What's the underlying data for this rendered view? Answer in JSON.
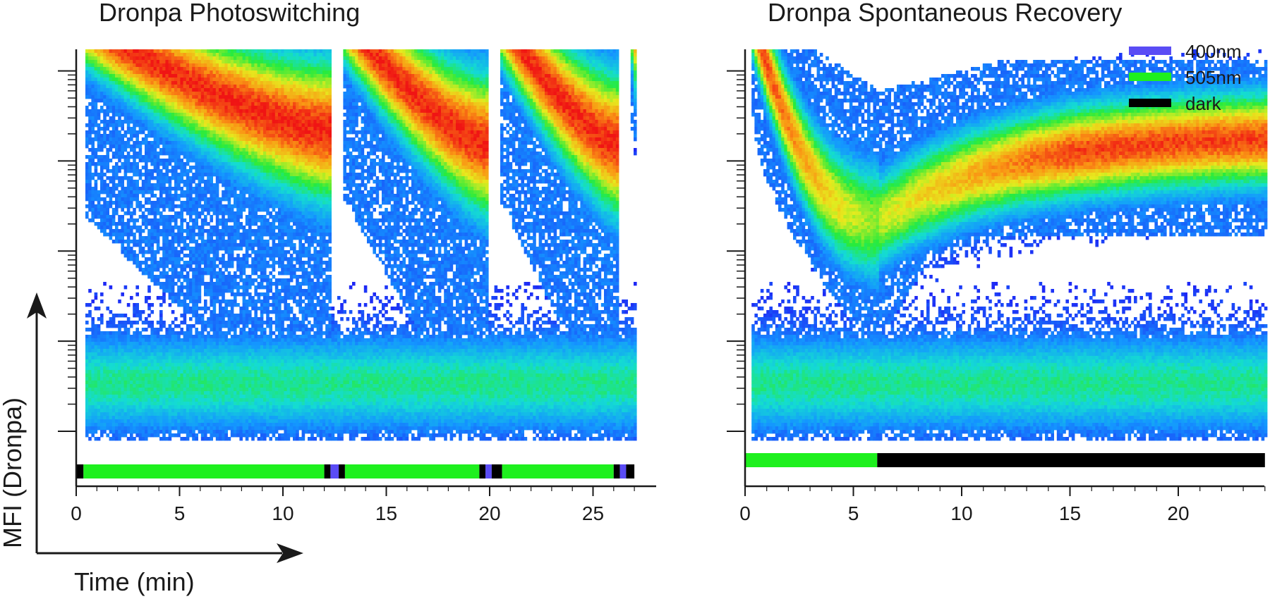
{
  "figure": {
    "y_axis_label": "MFI (Dronpa)",
    "x_axis_label": "Time (min)"
  },
  "colors": {
    "400nm": "#5a4cf5",
    "505nm": "#1ef01e",
    "dark": "#000000",
    "axis": "#1a1a1a"
  },
  "legend": [
    {
      "label": "400nm",
      "color_key": "400nm"
    },
    {
      "label": "505nm",
      "color_key": "505nm"
    },
    {
      "label": "dark",
      "color_key": "dark"
    }
  ],
  "chart_data": [
    {
      "type": "heatmap",
      "title": "Dronpa Photoswitching",
      "xlabel": "Time (min)",
      "ylabel": "MFI (Dronpa)",
      "xlim": [
        0,
        27.5
      ],
      "xticks": [
        0,
        5,
        10,
        15,
        20,
        25
      ],
      "xtick_labels": [
        "0",
        "5",
        "10",
        "15",
        "20",
        "25"
      ],
      "y_scale": "log",
      "y_decades": 4,
      "segments": [
        {
          "start": 0.3,
          "end": 12.2,
          "peak_start": 4.55,
          "peak_end": 3.35,
          "bright_top": 4.6,
          "bright_bottom": 2.4,
          "dim_bottom_end": 0.4
        },
        {
          "start": 12.9,
          "end": 19.9,
          "peak_start": 4.6,
          "peak_end": 3.2,
          "bright_top": 4.6,
          "bright_bottom": 2.6,
          "dim_bottom_end": 0.4
        },
        {
          "start": 20.4,
          "end": 26.2,
          "peak_start": 4.6,
          "peak_end": 3.2,
          "bright_top": 4.6,
          "bright_bottom": 2.6,
          "dim_bottom_end": 0.5
        },
        {
          "start": 26.8,
          "end": 27.0,
          "peak_start": 4.6,
          "peak_end": 4.6,
          "bright_top": 4.6,
          "bright_bottom": 3.4,
          "dim_bottom_end": 3.2
        }
      ],
      "background_band": {
        "center": 0.55,
        "width": 0.35
      },
      "illumination": [
        {
          "start": 0.0,
          "end": 0.35,
          "state": "dark"
        },
        {
          "start": 0.35,
          "end": 12.0,
          "state": "505nm"
        },
        {
          "start": 12.0,
          "end": 12.3,
          "state": "dark"
        },
        {
          "start": 12.3,
          "end": 12.7,
          "state": "400nm"
        },
        {
          "start": 12.7,
          "end": 13.0,
          "state": "dark"
        },
        {
          "start": 13.0,
          "end": 19.5,
          "state": "505nm"
        },
        {
          "start": 19.5,
          "end": 19.8,
          "state": "dark"
        },
        {
          "start": 19.8,
          "end": 20.1,
          "state": "400nm"
        },
        {
          "start": 20.1,
          "end": 20.6,
          "state": "dark"
        },
        {
          "start": 20.6,
          "end": 26.0,
          "state": "505nm"
        },
        {
          "start": 26.0,
          "end": 26.3,
          "state": "dark"
        },
        {
          "start": 26.3,
          "end": 26.6,
          "state": "400nm"
        },
        {
          "start": 26.6,
          "end": 27.0,
          "state": "dark"
        }
      ]
    },
    {
      "type": "heatmap",
      "title": "Dronpa Spontaneous Recovery",
      "xlabel": "Time (min)",
      "ylabel": "MFI (Dronpa)",
      "xlim": [
        0,
        24
      ],
      "xticks": [
        0,
        5,
        10,
        15,
        20
      ],
      "xtick_labels": [
        "0",
        "5",
        "10",
        "15",
        "20"
      ],
      "y_scale": "log",
      "y_decades": 4,
      "recovery_curve": {
        "start": 0.3,
        "minimum_time": 6.1,
        "end": 24,
        "peak_start": 4.6,
        "peak_minimum": 2.35,
        "peak_end": 3.3
      },
      "background_band": {
        "center": 0.55,
        "width": 0.35
      },
      "illumination": [
        {
          "start": 0.0,
          "end": 6.1,
          "state": "505nm"
        },
        {
          "start": 6.1,
          "end": 24.0,
          "state": "dark"
        }
      ]
    }
  ]
}
